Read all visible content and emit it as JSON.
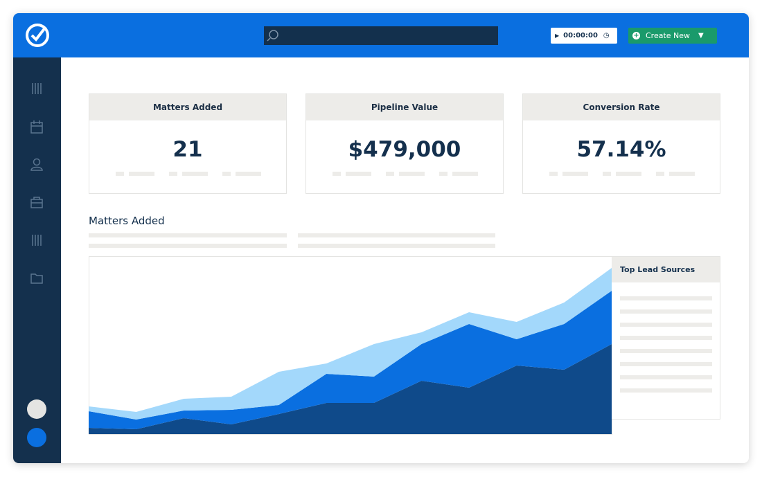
{
  "header": {
    "timer": "00:00:00",
    "create_button": "Create New"
  },
  "cards": [
    {
      "title": "Matters Added",
      "value": "21"
    },
    {
      "title": "Pipeline Value",
      "value": "$479,000"
    },
    {
      "title": "Conversion Rate",
      "value": "57.14%"
    }
  ],
  "section": {
    "title": "Matters Added"
  },
  "lead_sources": {
    "title": "Top Lead Sources"
  },
  "chart_data": {
    "type": "area",
    "stacked": true,
    "ylim": [
      0,
      257
    ],
    "series": [
      {
        "color": "#0f4a8a",
        "values": [
          9,
          7,
          23,
          14,
          29,
          45,
          45,
          77,
          67,
          99,
          93,
          130
        ]
      },
      {
        "color": "#0a6fe0",
        "values": [
          24,
          14,
          11,
          21,
          13,
          42,
          38,
          53,
          92,
          38,
          66,
          77
        ]
      },
      {
        "color": "#a3d8fb",
        "values": [
          7,
          11,
          17,
          19,
          48,
          15,
          47,
          17,
          17,
          25,
          31,
          33
        ]
      }
    ]
  }
}
